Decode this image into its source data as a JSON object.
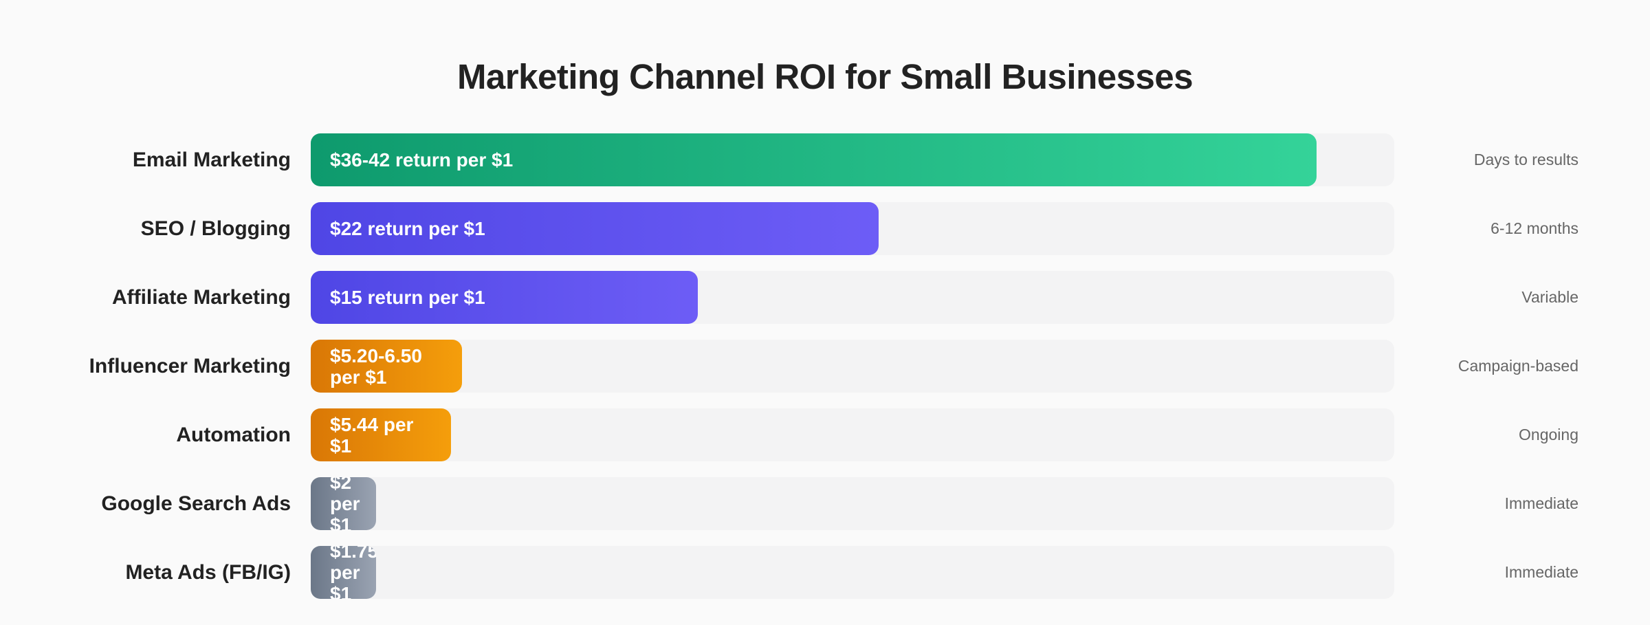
{
  "chart_data": {
    "type": "bar",
    "orientation": "horizontal",
    "title": "Marketing Channel ROI for Small Businesses",
    "categories": [
      "Email Marketing",
      "SEO / Blogging",
      "Affiliate Marketing",
      "Influencer Marketing",
      "Automation",
      "Google Search Ads",
      "Meta Ads (FB/IG)"
    ],
    "values": [
      39,
      22,
      15,
      5.85,
      5.44,
      2,
      1.75
    ],
    "bar_labels": [
      "$36-42 return per $1",
      "$22 return per $1",
      "$15 return per $1",
      "$5.20-6.50 per $1",
      "$5.44 per $1",
      "$2 per $1",
      "$1.75 per $1"
    ],
    "time_to_results": [
      "Days to results",
      "6-12 months",
      "Variable",
      "Campaign-based",
      "Ongoing",
      "Immediate",
      "Immediate"
    ],
    "xlim": [
      0,
      42
    ],
    "grid": false,
    "legend": "none",
    "colors": {
      "green": [
        "#0e9a6d",
        "#34d399"
      ],
      "purple": [
        "#4f46e5",
        "#6d5df6"
      ],
      "orange": [
        "#d97706",
        "#f59e0b"
      ],
      "slate": [
        "#6b7788",
        "#9aa3b2"
      ]
    },
    "bar_color_groups": [
      "green",
      "purple",
      "purple",
      "orange",
      "orange",
      "slate",
      "slate"
    ]
  }
}
